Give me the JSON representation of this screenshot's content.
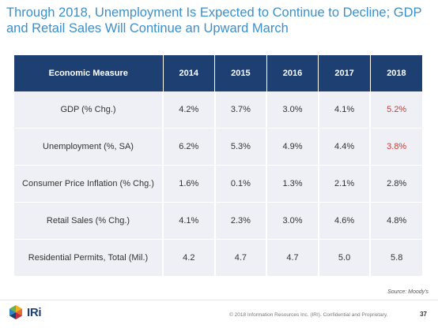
{
  "slide": {
    "title": "Through 2018, Unemployment Is Expected to Continue to Decline; GDP and Retail Sales Will Continue an Upward March",
    "source": "Source: Moody's",
    "copyright": "© 2018 Information Resources Inc. (IRI). Confidential and Proprietary.",
    "page_number": "37",
    "logo_text": "IRi"
  },
  "table": {
    "headers": [
      "Economic Measure",
      "2014",
      "2015",
      "2016",
      "2017",
      "2018"
    ],
    "rows": [
      [
        "GDP (% Chg.)",
        "4.2%",
        "3.7%",
        "3.0%",
        "4.1%",
        "5.2%"
      ],
      [
        "Unemployment (%, SA)",
        "6.2%",
        "5.3%",
        "4.9%",
        "4.4%",
        "3.8%"
      ],
      [
        "Consumer Price Inflation (% Chg.)",
        "1.6%",
        "0.1%",
        "1.3%",
        "2.1%",
        "2.8%"
      ],
      [
        "Retail Sales (% Chg.)",
        "4.1%",
        "2.3%",
        "3.0%",
        "4.6%",
        "4.8%"
      ],
      [
        "Residential Permits, Total (Mil.)",
        "4.2",
        "4.7",
        "4.7",
        "5.0",
        "5.8"
      ]
    ]
  },
  "colors": {
    "title": "#3d8fc8",
    "header_bg": "#1d3f72",
    "row_bg": "#eef0f5",
    "highlight": "#d03a2e"
  }
}
